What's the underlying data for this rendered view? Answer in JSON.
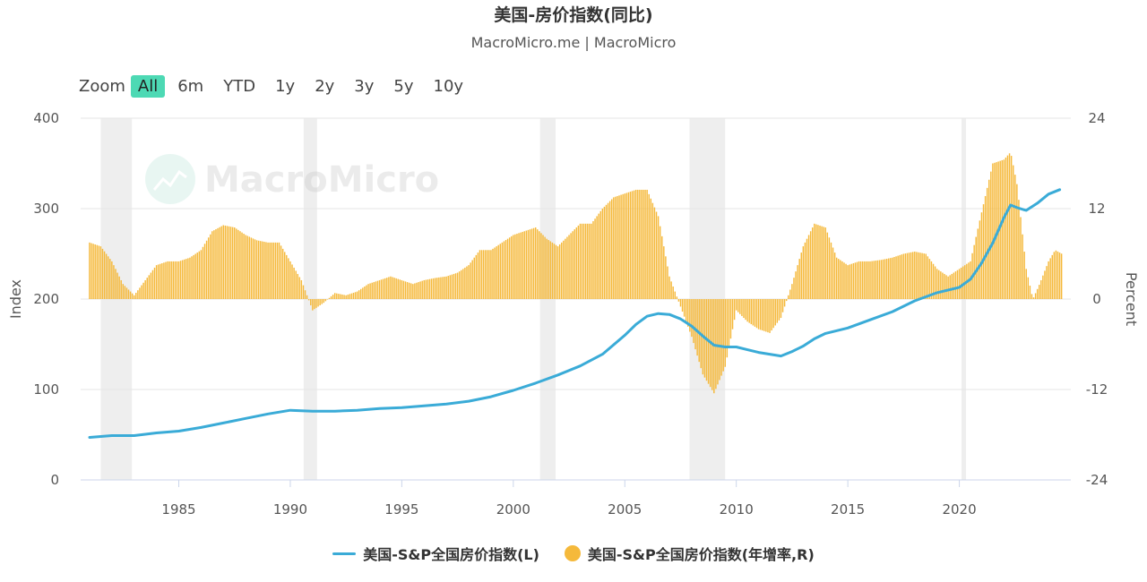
{
  "header": {
    "title": "美国-房价指数(同比)",
    "subtitle": "MacroMicro.me | MacroMicro"
  },
  "zoom": {
    "label": "Zoom",
    "options": [
      "All",
      "6m",
      "YTD",
      "1y",
      "2y",
      "3y",
      "5y",
      "10y"
    ],
    "active": "All"
  },
  "watermark": "MacroMicro",
  "legend": {
    "index_label": "美国-S&P全国房价指数(L)",
    "yoy_label": "美国-S&P全国房价指数(年增率,R)"
  },
  "chart_data": {
    "type": "line+bar",
    "x_unit": "year",
    "x_ticks": [
      1985,
      1990,
      1995,
      2000,
      2005,
      2010,
      2015,
      2020
    ],
    "xlim": [
      1980.6,
      2025.0
    ],
    "left_axis": {
      "label": "Index",
      "ticks": [
        0,
        100,
        200,
        300,
        400
      ],
      "range": [
        0,
        400
      ]
    },
    "right_axis": {
      "label": "Percent",
      "ticks": [
        -24,
        -12,
        0,
        12,
        24
      ],
      "range": [
        -24,
        24
      ]
    },
    "recessions": [
      [
        1981.5,
        1982.9
      ],
      [
        1990.6,
        1991.2
      ],
      [
        2001.2,
        2001.9
      ],
      [
        2007.9,
        2009.5
      ],
      [
        2020.1,
        2020.3
      ]
    ],
    "colors": {
      "index": "#3aabd7",
      "yoy": "#f5b93b",
      "recession": "#eeeeee",
      "grid": "#e6e6e6"
    },
    "series": [
      {
        "name": "美国-S&P全国房价指数(L)",
        "axis": "left",
        "type": "line",
        "points": [
          [
            1981.0,
            47
          ],
          [
            1982.0,
            49
          ],
          [
            1983.0,
            49
          ],
          [
            1984.0,
            52
          ],
          [
            1985.0,
            54
          ],
          [
            1986.0,
            58
          ],
          [
            1987.0,
            63
          ],
          [
            1988.0,
            68
          ],
          [
            1989.0,
            73
          ],
          [
            1990.0,
            77
          ],
          [
            1991.0,
            76
          ],
          [
            1992.0,
            76
          ],
          [
            1993.0,
            77
          ],
          [
            1994.0,
            79
          ],
          [
            1995.0,
            80
          ],
          [
            1996.0,
            82
          ],
          [
            1997.0,
            84
          ],
          [
            1998.0,
            87
          ],
          [
            1999.0,
            92
          ],
          [
            2000.0,
            99
          ],
          [
            2001.0,
            107
          ],
          [
            2002.0,
            116
          ],
          [
            2003.0,
            126
          ],
          [
            2004.0,
            139
          ],
          [
            2005.0,
            160
          ],
          [
            2005.5,
            172
          ],
          [
            2006.0,
            181
          ],
          [
            2006.5,
            184
          ],
          [
            2007.0,
            183
          ],
          [
            2007.5,
            178
          ],
          [
            2008.0,
            170
          ],
          [
            2008.5,
            159
          ],
          [
            2009.0,
            149
          ],
          [
            2009.5,
            147
          ],
          [
            2010.0,
            147
          ],
          [
            2010.5,
            144
          ],
          [
            2011.0,
            141
          ],
          [
            2011.5,
            139
          ],
          [
            2012.0,
            137
          ],
          [
            2012.5,
            142
          ],
          [
            2013.0,
            148
          ],
          [
            2013.5,
            156
          ],
          [
            2014.0,
            162
          ],
          [
            2015.0,
            168
          ],
          [
            2016.0,
            177
          ],
          [
            2017.0,
            186
          ],
          [
            2018.0,
            198
          ],
          [
            2019.0,
            207
          ],
          [
            2020.0,
            213
          ],
          [
            2020.5,
            222
          ],
          [
            2021.0,
            240
          ],
          [
            2021.5,
            262
          ],
          [
            2022.0,
            290
          ],
          [
            2022.3,
            304
          ],
          [
            2022.6,
            301
          ],
          [
            2023.0,
            298
          ],
          [
            2023.5,
            306
          ],
          [
            2024.0,
            316
          ],
          [
            2024.5,
            321
          ]
        ]
      },
      {
        "name": "美国-S&P全国房价指数(年增率,R)",
        "axis": "right",
        "type": "bar",
        "points": [
          [
            1981.0,
            7.5
          ],
          [
            1981.5,
            7.0
          ],
          [
            1982.0,
            5.0
          ],
          [
            1982.5,
            2.0
          ],
          [
            1983.0,
            0.5
          ],
          [
            1983.5,
            2.5
          ],
          [
            1984.0,
            4.5
          ],
          [
            1984.5,
            5.0
          ],
          [
            1985.0,
            5.0
          ],
          [
            1985.5,
            5.5
          ],
          [
            1986.0,
            6.5
          ],
          [
            1986.5,
            9.0
          ],
          [
            1987.0,
            9.8
          ],
          [
            1987.5,
            9.5
          ],
          [
            1988.0,
            8.5
          ],
          [
            1988.5,
            7.8
          ],
          [
            1989.0,
            7.5
          ],
          [
            1989.5,
            7.5
          ],
          [
            1990.0,
            5.0
          ],
          [
            1990.5,
            2.5
          ],
          [
            1991.0,
            -1.5
          ],
          [
            1991.5,
            -0.5
          ],
          [
            1992.0,
            0.8
          ],
          [
            1992.5,
            0.5
          ],
          [
            1993.0,
            1.0
          ],
          [
            1993.5,
            2.0
          ],
          [
            1994.0,
            2.5
          ],
          [
            1994.5,
            3.0
          ],
          [
            1995.0,
            2.5
          ],
          [
            1995.5,
            2.0
          ],
          [
            1996.0,
            2.5
          ],
          [
            1996.5,
            2.8
          ],
          [
            1997.0,
            3.0
          ],
          [
            1997.5,
            3.5
          ],
          [
            1998.0,
            4.5
          ],
          [
            1998.5,
            6.5
          ],
          [
            1999.0,
            6.5
          ],
          [
            1999.5,
            7.5
          ],
          [
            2000.0,
            8.5
          ],
          [
            2000.5,
            9.0
          ],
          [
            2001.0,
            9.5
          ],
          [
            2001.5,
            8.0
          ],
          [
            2002.0,
            7.0
          ],
          [
            2002.5,
            8.5
          ],
          [
            2003.0,
            10.0
          ],
          [
            2003.5,
            10.0
          ],
          [
            2004.0,
            12.0
          ],
          [
            2004.5,
            13.5
          ],
          [
            2005.0,
            14.0
          ],
          [
            2005.5,
            14.5
          ],
          [
            2006.0,
            14.5
          ],
          [
            2006.5,
            11.0
          ],
          [
            2007.0,
            3.0
          ],
          [
            2007.5,
            -1.0
          ],
          [
            2008.0,
            -5.0
          ],
          [
            2008.5,
            -10.0
          ],
          [
            2009.0,
            -12.5
          ],
          [
            2009.5,
            -9.0
          ],
          [
            2010.0,
            -1.5
          ],
          [
            2010.5,
            -3.0
          ],
          [
            2011.0,
            -4.0
          ],
          [
            2011.5,
            -4.5
          ],
          [
            2012.0,
            -2.5
          ],
          [
            2012.5,
            2.0
          ],
          [
            2013.0,
            7.0
          ],
          [
            2013.5,
            10.0
          ],
          [
            2014.0,
            9.5
          ],
          [
            2014.5,
            5.5
          ],
          [
            2015.0,
            4.5
          ],
          [
            2015.5,
            5.0
          ],
          [
            2016.0,
            5.0
          ],
          [
            2016.5,
            5.2
          ],
          [
            2017.0,
            5.5
          ],
          [
            2017.5,
            6.0
          ],
          [
            2018.0,
            6.3
          ],
          [
            2018.5,
            6.0
          ],
          [
            2019.0,
            4.0
          ],
          [
            2019.5,
            3.0
          ],
          [
            2020.0,
            4.0
          ],
          [
            2020.5,
            5.0
          ],
          [
            2021.0,
            11.5
          ],
          [
            2021.5,
            18.0
          ],
          [
            2022.0,
            18.5
          ],
          [
            2022.3,
            19.5
          ],
          [
            2022.6,
            15.0
          ],
          [
            2023.0,
            4.0
          ],
          [
            2023.3,
            0.0
          ],
          [
            2023.6,
            2.0
          ],
          [
            2024.0,
            5.0
          ],
          [
            2024.3,
            6.5
          ],
          [
            2024.6,
            6.0
          ]
        ]
      }
    ]
  }
}
